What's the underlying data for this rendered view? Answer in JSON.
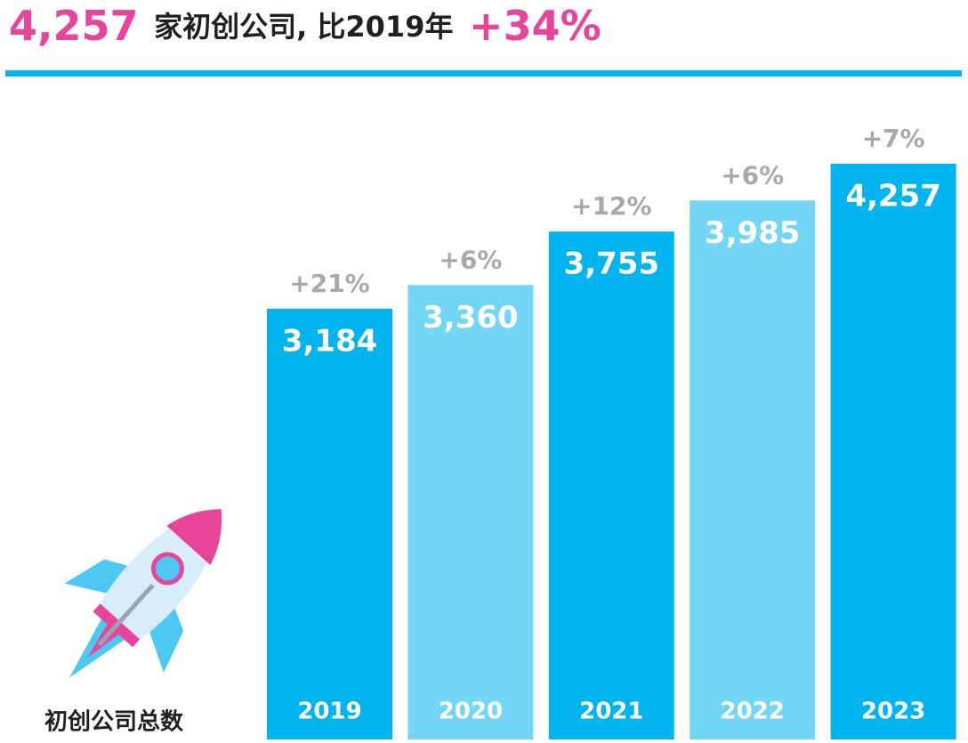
{
  "chart_data": {
    "type": "bar",
    "title": {
      "number": "4,257",
      "text": "家初创公司, 比2019年",
      "change": "+34%"
    },
    "label": "初创公司总数",
    "categories": [
      "2019",
      "2020",
      "2021",
      "2022",
      "2023"
    ],
    "values": [
      3184,
      3360,
      3755,
      3985,
      4257
    ],
    "value_labels": [
      "3,184",
      "3,360",
      "3,755",
      "3,985",
      "4,257"
    ],
    "annotations": [
      "+21%",
      "+6%",
      "+12%",
      "+6%",
      "+7%"
    ],
    "colors": [
      "#00b4ee",
      "#74d6f5",
      "#00b4ee",
      "#74d6f5",
      "#00b4ee"
    ],
    "ylim": [
      0,
      5500
    ]
  }
}
